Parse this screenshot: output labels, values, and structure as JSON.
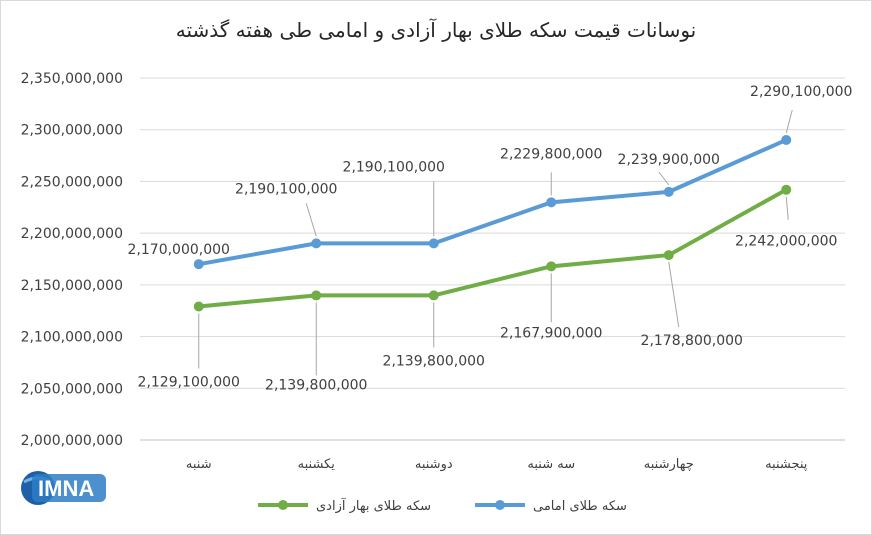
{
  "title": "نوسانات قیمت سکه طلای بهار آزادی و امامی طی هفته گذشته",
  "logo": {
    "text": "IMNA"
  },
  "chart_data": {
    "type": "line",
    "title": "نوسانات قیمت سکه طلای بهار آزادی و امامی طی هفته گذشته",
    "categories": [
      "شنبه",
      "یکشنبه",
      "دوشنبه",
      "سه شنبه",
      "چهارشنبه",
      "پنجشنبه"
    ],
    "ylim": [
      2000000000,
      2350000000
    ],
    "yticks": [
      2000000000,
      2050000000,
      2100000000,
      2150000000,
      2200000000,
      2250000000,
      2300000000,
      2350000000
    ],
    "ytick_labels": [
      "2,000,000,000",
      "2,050,000,000",
      "2,100,000,000",
      "2,150,000,000",
      "2,200,000,000",
      "2,250,000,000",
      "2,300,000,000",
      "2,350,000,000"
    ],
    "grid": true,
    "legend_position": "bottom",
    "series": [
      {
        "name": "سکه طلای امامی",
        "color": "#5b9bd5",
        "values": [
          2170000000,
          2190100000,
          2190100000,
          2229800000,
          2239900000,
          2290100000
        ],
        "labels": [
          "2,170,000,000",
          "2,190,100,000",
          "2,190,100,000",
          "2,229,800,000",
          "2,239,900,000",
          "2,290,100,000"
        ]
      },
      {
        "name": "سکه طلای بهار آزادی",
        "color": "#70ad47",
        "values": [
          2129100000,
          2139800000,
          2139800000,
          2167900000,
          2178800000,
          2242000000
        ],
        "labels": [
          "2,129,100,000",
          "2,139,800,000",
          "2,139,800,000",
          "2,167,900,000",
          "2,178,800,000",
          "2,242,000,000"
        ]
      }
    ]
  }
}
